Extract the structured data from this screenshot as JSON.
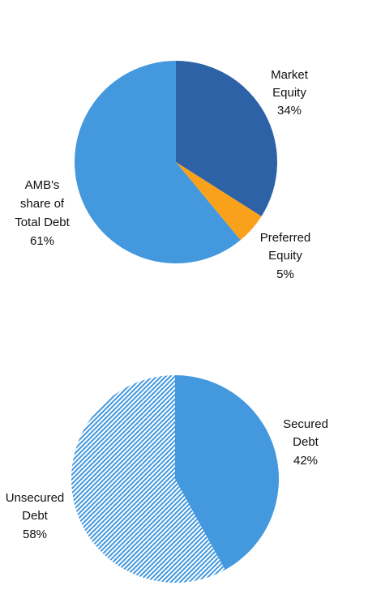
{
  "colors": {
    "market_equity": "#2E62A6",
    "preferred_equity": "#F9A11B",
    "amb_debt": "#4398DE",
    "secured_debt": "#4398DE",
    "unsecured_stripe": "#4398DE",
    "unsecured_bg": "#FFFFFF"
  },
  "chart_data": [
    {
      "type": "pie",
      "slices": [
        {
          "label_lines": [
            "Market",
            "Equity",
            "34%"
          ],
          "value": 34,
          "color": "#2E62A6",
          "pattern": "solid"
        },
        {
          "label_lines": [
            "Preferred",
            "Equity",
            "5%"
          ],
          "value": 5,
          "color": "#F9A11B",
          "pattern": "solid"
        },
        {
          "label_lines": [
            "AMB's",
            "share of",
            "Total Debt",
            "61%"
          ],
          "value": 61,
          "color": "#4398DE",
          "pattern": "solid"
        }
      ],
      "start": "12 o'clock",
      "direction": "clockwise",
      "legend": "none"
    },
    {
      "type": "pie",
      "slices": [
        {
          "label_lines": [
            "Secured",
            "Debt",
            "42%"
          ],
          "value": 42,
          "color": "#4398DE",
          "pattern": "solid"
        },
        {
          "label_lines": [
            "Unsecured",
            "Debt",
            "58%"
          ],
          "value": 58,
          "color": "#4398DE",
          "pattern": "diagonal-stripes"
        }
      ],
      "start": "12 o'clock",
      "direction": "clockwise",
      "legend": "none"
    }
  ]
}
